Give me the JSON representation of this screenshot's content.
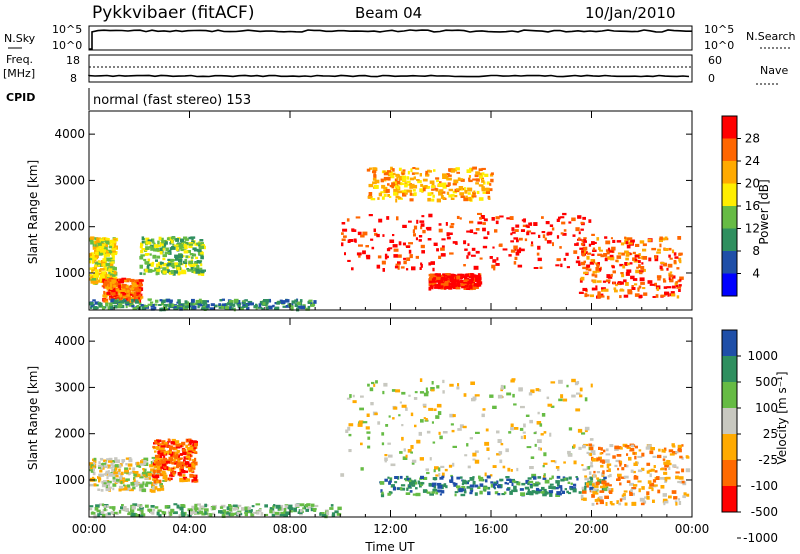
{
  "header": {
    "station": "Pykkvibaer (fitACF)",
    "beam": "Beam 04",
    "date": "10/Jan/2010"
  },
  "summary": {
    "nsky_label": "N.Sky",
    "nsearch_label": "N.Search",
    "nsky_ticks": [
      "10^5",
      "10^0"
    ],
    "nsearch_ticks": [
      "10^5",
      "10^0"
    ],
    "freq_label_1": "Freq.",
    "freq_label_2": "[MHz]",
    "freq_ticks": [
      "18",
      "8"
    ],
    "nave_label": "Nave",
    "nave_ticks": [
      "60",
      "0"
    ],
    "cpid_label": "CPID",
    "cpid_text": "normal (fast stereo) 153"
  },
  "colors": {
    "power": [
      "#0000ff",
      "#1f4fa8",
      "#2f8f5f",
      "#66bb44",
      "#ffee00",
      "#ffaa00",
      "#ff6600",
      "#ff0000"
    ],
    "velocity": [
      "#ff0000",
      "#ff6a00",
      "#ffaa00",
      "#c8c8c0",
      "#66bb44",
      "#2f8f5f",
      "#1f4fa8"
    ]
  },
  "chart_data": [
    {
      "type": "heatmap",
      "ylabel": "Slant Range [km]",
      "x_ticks": [
        "00:00",
        "04:00",
        "08:00",
        "12:00",
        "16:00",
        "20:00",
        "00:00"
      ],
      "y_ticks": [
        1000,
        2000,
        3000,
        4000
      ],
      "ylim": [
        200,
        4500
      ],
      "xlim_hours": [
        0,
        24
      ],
      "colorbar": {
        "label": "Power [dB]",
        "ticks": [
          4,
          8,
          12,
          16,
          20,
          24,
          28
        ]
      },
      "features": [
        {
          "t": [
            0.0,
            1.0
          ],
          "r": [
            800,
            1800
          ],
          "level": 4
        },
        {
          "t": [
            2.0,
            4.5
          ],
          "r": [
            1000,
            1800
          ],
          "level": 3
        },
        {
          "t": [
            0.5,
            2.0
          ],
          "r": [
            400,
            900
          ],
          "level": 6
        },
        {
          "t": [
            10.0,
            20.0
          ],
          "r": [
            1100,
            2300
          ],
          "level": 7
        },
        {
          "t": [
            13.5,
            15.5
          ],
          "r": [
            700,
            1000
          ],
          "level": 7
        },
        {
          "t": [
            11.0,
            16.0
          ],
          "r": [
            2600,
            3300
          ],
          "level": 5
        },
        {
          "t": [
            19.5,
            23.5
          ],
          "r": [
            500,
            1800
          ],
          "level": 6
        },
        {
          "t": [
            0.0,
            9.0
          ],
          "r": [
            250,
            450
          ],
          "level": 2
        }
      ]
    },
    {
      "type": "heatmap",
      "ylabel": "Slant Range [km]",
      "xlabel": "Time UT",
      "x_ticks": [
        "00:00",
        "04:00",
        "08:00",
        "12:00",
        "16:00",
        "20:00",
        "00:00"
      ],
      "y_ticks": [
        1000,
        2000,
        3000,
        4000
      ],
      "ylim": [
        200,
        4500
      ],
      "xlim_hours": [
        0,
        24
      ],
      "colorbar": {
        "label": "Velocity [m s⁻¹]",
        "ticks": [
          1000,
          500,
          100,
          25,
          -25,
          -100,
          -500,
          -1000
        ]
      },
      "features": [
        {
          "t": [
            0.0,
            3.0
          ],
          "r": [
            800,
            1500
          ],
          "level": 3
        },
        {
          "t": [
            2.5,
            4.2
          ],
          "r": [
            1000,
            1900
          ],
          "level": 1
        },
        {
          "t": [
            10.0,
            20.0
          ],
          "r": [
            1100,
            3200
          ],
          "level": 3
        },
        {
          "t": [
            11.5,
            20.5
          ],
          "r": [
            700,
            1100
          ],
          "level": 5
        },
        {
          "t": [
            19.5,
            23.8
          ],
          "r": [
            500,
            1800
          ],
          "level": 2
        },
        {
          "t": [
            0.0,
            10.0
          ],
          "r": [
            250,
            500
          ],
          "level": 4
        }
      ]
    }
  ]
}
